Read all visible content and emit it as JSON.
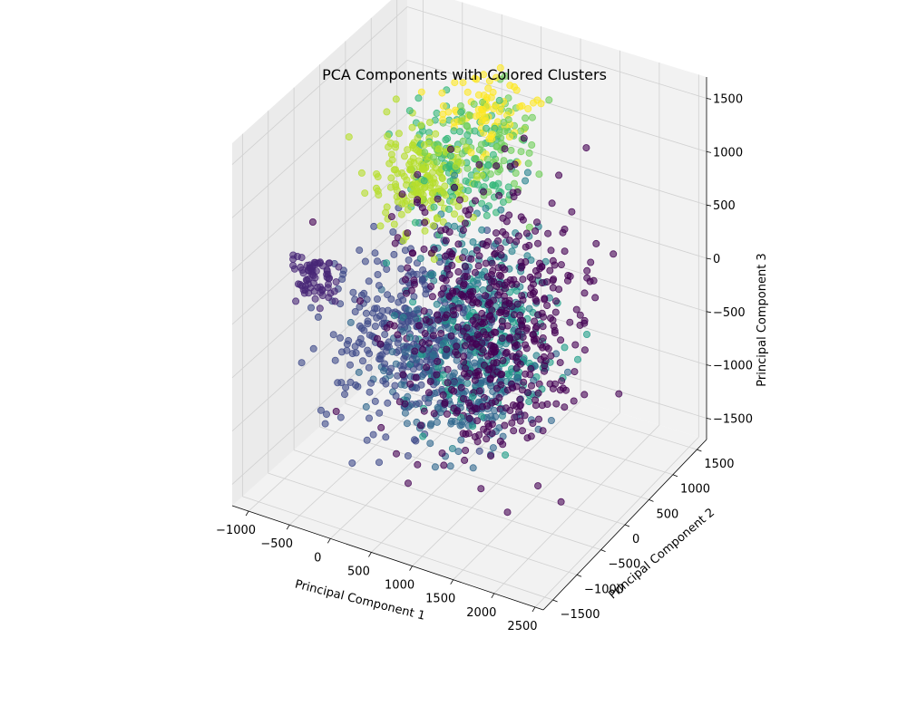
{
  "chart_data": {
    "type": "scatter",
    "projection": "3d",
    "title": "PCA Components with Colored Clusters",
    "xlabel": "Principal Component 1",
    "ylabel": "Principal Component 2",
    "zlabel": "Principal Component 3",
    "xlim": [
      -1200,
      2600
    ],
    "ylim": [
      -1700,
      1700
    ],
    "zlim": [
      -1700,
      1700
    ],
    "xticks": [
      "−1000",
      "−500",
      "0",
      "500",
      "1000",
      "1500",
      "2000",
      "2500"
    ],
    "xtick_values": [
      -1000,
      -500,
      0,
      500,
      1000,
      1500,
      2000,
      2500
    ],
    "yticks": [
      "−1500",
      "−1000",
      "−500",
      "0",
      "500",
      "1000",
      "1500"
    ],
    "ytick_values": [
      -1500,
      -1000,
      -500,
      0,
      500,
      1000,
      1500
    ],
    "zticks": [
      "−1500",
      "−1000",
      "−500",
      "0",
      "500",
      "1000",
      "1500"
    ],
    "ztick_values": [
      -1500,
      -1000,
      -500,
      0,
      500,
      1000,
      1500
    ],
    "grid": true,
    "colormap": "viridis",
    "point_alpha": 0.6,
    "clusters": [
      {
        "color": "#440154",
        "center": [
          1200,
          -400,
          0
        ],
        "spread": [
          520,
          480,
          600
        ],
        "count": 520
      },
      {
        "color": "#482777",
        "center": [
          -700,
          -900,
          200
        ],
        "spread": [
          120,
          120,
          120
        ],
        "count": 70
      },
      {
        "color": "#3e4a89",
        "center": [
          -250,
          200,
          -700
        ],
        "spread": [
          380,
          420,
          380
        ],
        "count": 340
      },
      {
        "color": "#31688e",
        "center": [
          450,
          250,
          -950
        ],
        "spread": [
          420,
          360,
          300
        ],
        "count": 280
      },
      {
        "color": "#26828e",
        "center": [
          450,
          500,
          -300
        ],
        "spread": [
          320,
          380,
          420
        ],
        "count": 180
      },
      {
        "color": "#1f9e89",
        "center": [
          650,
          400,
          -750
        ],
        "spread": [
          380,
          380,
          280
        ],
        "count": 150
      },
      {
        "color": "#35b779",
        "center": [
          150,
          700,
          800
        ],
        "spread": [
          320,
          300,
          250
        ],
        "count": 120
      },
      {
        "color": "#6ece58",
        "center": [
          350,
          900,
          950
        ],
        "spread": [
          300,
          300,
          200
        ],
        "count": 90
      },
      {
        "color": "#b5de2b",
        "center": [
          -150,
          400,
          700
        ],
        "spread": [
          280,
          250,
          220
        ],
        "count": 200
      },
      {
        "color": "#fde725",
        "center": [
          300,
          1000,
          1150
        ],
        "spread": [
          250,
          250,
          150
        ],
        "count": 80
      }
    ]
  }
}
